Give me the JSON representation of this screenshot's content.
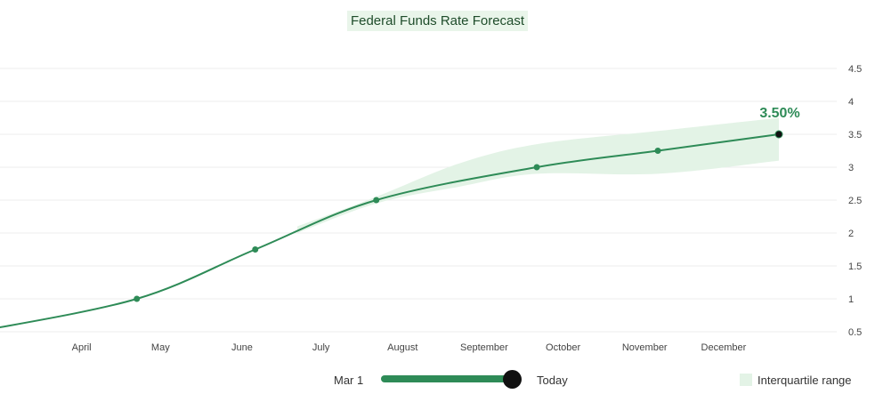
{
  "chart_data": {
    "type": "line",
    "title": "Federal Funds Rate Forecast",
    "xlabel": "",
    "ylabel": "",
    "x_tick_labels": [
      "April",
      "May",
      "June",
      "July",
      "August",
      "September",
      "October",
      "November",
      "December"
    ],
    "y_ticks": [
      0.5,
      1,
      1.5,
      2,
      2.5,
      3,
      3.5,
      4,
      4.5
    ],
    "ylim": [
      0.5,
      4.5
    ],
    "y_axis_side": "right",
    "grid": true,
    "series": [
      {
        "name": "",
        "color": "#2e8b57",
        "points": [
          {
            "x": "2025-03-01",
            "y": 0.5
          },
          {
            "x": "2025-05-01",
            "y": 1.0
          },
          {
            "x": "2025-06-15",
            "y": 1.75
          },
          {
            "x": "2025-07-31",
            "y": 2.5
          },
          {
            "x": "2025-09-30",
            "y": 3.0
          },
          {
            "x": "2025-11-15",
            "y": 3.25
          },
          {
            "x": "2025-12-31",
            "y": 3.5
          }
        ],
        "end_label": "3.50%"
      }
    ],
    "interquartile_range": {
      "name": "Interquartile range",
      "color": "#e3f3e6",
      "points": [
        {
          "x": "2025-07-01",
          "lower": 2.0,
          "upper": 2.1
        },
        {
          "x": "2025-07-31",
          "lower": 2.45,
          "upper": 2.55
        },
        {
          "x": "2025-08-31",
          "lower": 2.7,
          "upper": 3.05
        },
        {
          "x": "2025-09-30",
          "lower": 2.9,
          "upper": 3.35
        },
        {
          "x": "2025-11-15",
          "lower": 2.9,
          "upper": 3.55
        },
        {
          "x": "2025-12-31",
          "lower": 3.1,
          "upper": 3.75
        }
      ]
    },
    "legend": {
      "position": "bottom-right",
      "entries": [
        "Interquartile range"
      ]
    }
  },
  "slider": {
    "start_label": "Mar 1",
    "end_label": "Today"
  },
  "legend_label": "Interquartile range"
}
